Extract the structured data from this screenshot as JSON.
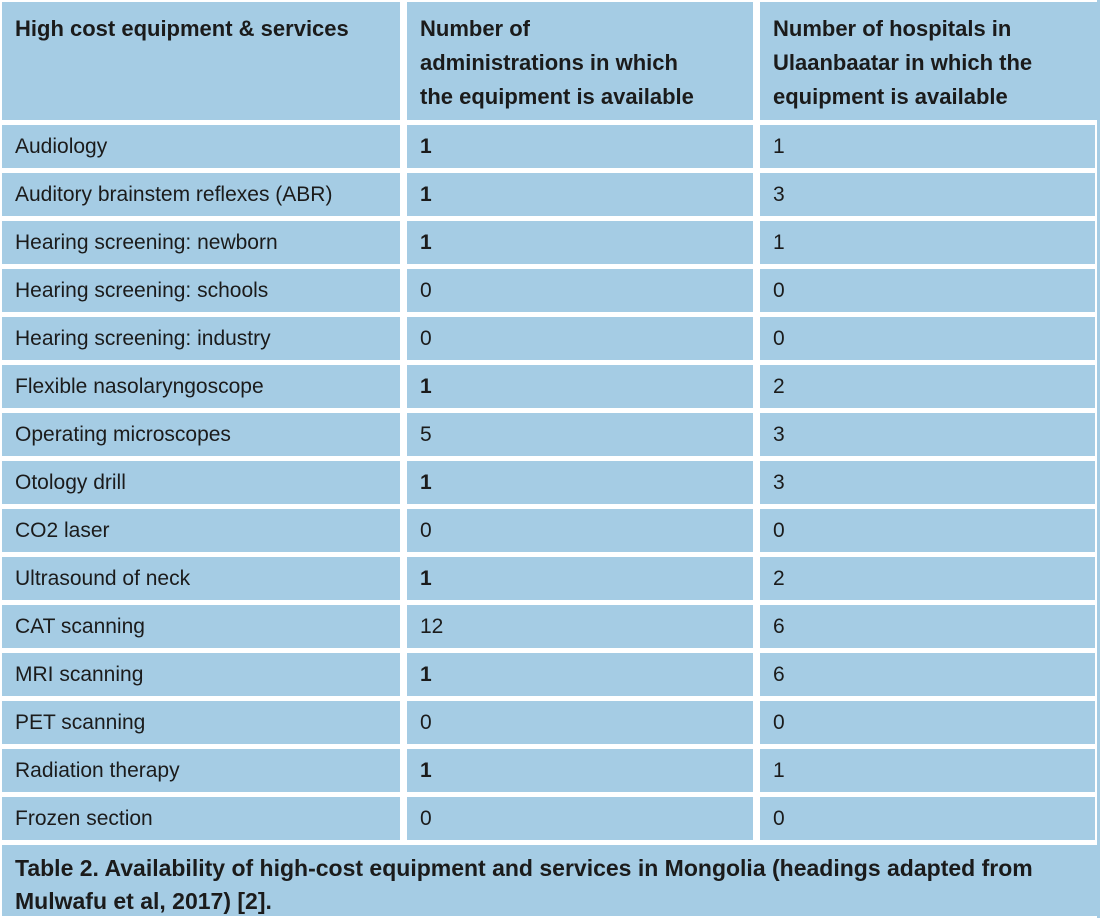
{
  "colors": {
    "cell_background": "#a5cce4",
    "separator": "#ffffff",
    "text": "#1b1b1b"
  },
  "table": {
    "headers": [
      {
        "lines": [
          "High cost equipment & services"
        ]
      },
      {
        "lines": [
          "Number of",
          "administrations in which",
          "the equipment is available"
        ]
      },
      {
        "lines": [
          "Number of hospitals in",
          "Ulaanbaatar in which the",
          "equipment is available"
        ]
      }
    ],
    "rows": [
      {
        "label": "Audiology",
        "administrations": "1",
        "administrations_bold": true,
        "hospitals": "1"
      },
      {
        "label": "Auditory brainstem reflexes (ABR)",
        "administrations": "1",
        "administrations_bold": true,
        "hospitals": "3"
      },
      {
        "label": "Hearing screening: newborn",
        "administrations": "1",
        "administrations_bold": true,
        "hospitals": "1"
      },
      {
        "label": "Hearing screening: schools",
        "administrations": "0",
        "administrations_bold": false,
        "hospitals": "0"
      },
      {
        "label": "Hearing screening: industry",
        "administrations": "0",
        "administrations_bold": false,
        "hospitals": "0"
      },
      {
        "label": "Flexible nasolaryngoscope",
        "administrations": "1",
        "administrations_bold": true,
        "hospitals": "2"
      },
      {
        "label": "Operating microscopes",
        "administrations": "5",
        "administrations_bold": false,
        "hospitals": "3"
      },
      {
        "label": "Otology drill",
        "administrations": "1",
        "administrations_bold": true,
        "hospitals": "3"
      },
      {
        "label": "CO2 laser",
        "administrations": "0",
        "administrations_bold": false,
        "hospitals": "0"
      },
      {
        "label": "Ultrasound of neck",
        "administrations": "1",
        "administrations_bold": true,
        "hospitals": "2"
      },
      {
        "label": "CAT scanning",
        "administrations": "12",
        "administrations_bold": false,
        "hospitals": "6"
      },
      {
        "label": "MRI scanning",
        "administrations": "1",
        "administrations_bold": true,
        "hospitals": "6"
      },
      {
        "label": "PET scanning",
        "administrations": "0",
        "administrations_bold": false,
        "hospitals": "0"
      },
      {
        "label": "Radiation therapy",
        "administrations": "1",
        "administrations_bold": true,
        "hospitals": "1"
      },
      {
        "label": "Frozen section",
        "administrations": "0",
        "administrations_bold": false,
        "hospitals": "0"
      }
    ],
    "caption": "Table 2. Availability of high-cost equipment and services in Mongolia (headings adapted from Mulwafu et al, 2017) [2]."
  }
}
